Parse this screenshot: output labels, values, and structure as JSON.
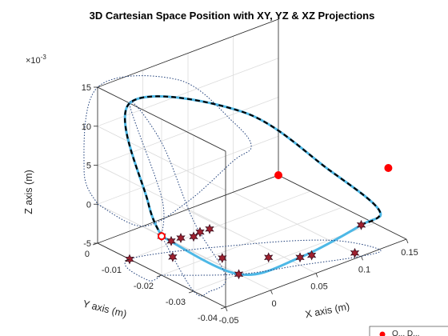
{
  "chart_data": {
    "type": "line",
    "title": "3D Cartesian Space Position with XY, YZ & XZ Projections",
    "xlabel": "X axis (m)",
    "ylabel": "Y axis (m)",
    "zlabel": "Z axis (m)",
    "z_multiplier": "×10",
    "z_exponent": "-3",
    "xlim": [
      -0.05,
      0.15
    ],
    "ylim": [
      -0.04,
      0
    ],
    "zlim": [
      -5,
      15
    ],
    "x_ticks": [
      -0.05,
      0,
      0.05,
      0.1,
      0.15
    ],
    "x_tick_labels": [
      "-0.05",
      "0",
      "0.05",
      "0.1",
      "0.15"
    ],
    "y_ticks": [
      -0.04,
      -0.03,
      -0.02,
      -0.01,
      0
    ],
    "y_tick_labels": [
      "-0.04",
      "-0.03",
      "-0.02",
      "-0.01",
      "0"
    ],
    "z_ticks": [
      -5,
      0,
      5,
      10,
      15
    ],
    "z_tick_labels": [
      "-5",
      "0",
      "5",
      "10",
      "15"
    ],
    "grid": true,
    "legend_position": "bottom-right",
    "legend_text": "Q... D...",
    "colors": {
      "trajectory": "#4db8e6",
      "reference": "#000000",
      "projection": "#1f3f7a",
      "waypoint_fill": "#a0202e",
      "waypoint_edge": "#3c1020",
      "point": "#ff0000"
    },
    "series": [
      {
        "role": "actual-trajectory",
        "points": [
          [
            -0.05,
            -0.02,
            0
          ],
          [
            0,
            -0.03,
            -5
          ],
          [
            0.05,
            -0.035,
            -4
          ],
          [
            0.1,
            -0.04,
            -1
          ],
          [
            0.12,
            -0.04,
            0
          ],
          [
            0.1,
            -0.03,
            4
          ],
          [
            0.04,
            -0.02,
            12
          ],
          [
            -0.05,
            -0.01,
            15
          ],
          [
            -0.065,
            -0.02,
            5
          ],
          [
            -0.05,
            -0.02,
            0
          ]
        ]
      },
      {
        "role": "reference-trajectory",
        "points": [
          [
            0.1,
            -0.04,
            -1
          ],
          [
            0.12,
            -0.04,
            0
          ],
          [
            0.1,
            -0.03,
            4
          ],
          [
            0.04,
            -0.02,
            12
          ],
          [
            -0.05,
            -0.01,
            15
          ],
          [
            -0.065,
            -0.02,
            5
          ],
          [
            -0.05,
            -0.02,
            0
          ]
        ]
      },
      {
        "role": "projection-xy",
        "points": [
          [
            -0.05,
            -0.02,
            -5
          ],
          [
            0,
            -0.03,
            -5
          ],
          [
            0.05,
            -0.035,
            -5
          ],
          [
            0.1,
            -0.04,
            -5
          ],
          [
            0.12,
            -0.04,
            -5
          ],
          [
            0.1,
            -0.03,
            -5
          ],
          [
            0.04,
            -0.02,
            -5
          ],
          [
            -0.05,
            -0.01,
            -5
          ],
          [
            -0.065,
            -0.02,
            -5
          ],
          [
            -0.05,
            -0.02,
            -5
          ]
        ]
      },
      {
        "role": "projection-yz",
        "points": [
          [
            -0.05,
            -0.02,
            0
          ],
          [
            -0.05,
            -0.03,
            -5
          ],
          [
            -0.05,
            -0.035,
            -4
          ],
          [
            -0.05,
            -0.04,
            -1
          ],
          [
            -0.05,
            -0.03,
            4
          ],
          [
            -0.05,
            -0.02,
            12
          ],
          [
            -0.05,
            -0.01,
            15
          ],
          [
            -0.05,
            -0.02,
            5
          ],
          [
            -0.05,
            -0.02,
            0
          ]
        ]
      },
      {
        "role": "projection-xz",
        "points": [
          [
            -0.05,
            0,
            0
          ],
          [
            0,
            0,
            -5
          ],
          [
            0.05,
            0,
            -4
          ],
          [
            0.1,
            0,
            -1
          ],
          [
            0.12,
            0,
            0
          ],
          [
            0.1,
            0,
            4
          ],
          [
            0.04,
            0,
            12
          ],
          [
            -0.05,
            0,
            15
          ],
          [
            -0.065,
            0,
            5
          ],
          [
            -0.05,
            0,
            0
          ]
        ]
      }
    ],
    "waypoints": [
      [
        -0.05,
        -0.02,
        0
      ],
      [
        0,
        -0.03,
        -5
      ],
      [
        0.05,
        -0.035,
        -4
      ],
      [
        0.1,
        -0.04,
        -1
      ],
      [
        -0.05,
        -0.023,
        0
      ],
      [
        -0.05,
        -0.026,
        1
      ],
      [
        -0.05,
        -0.03,
        2
      ],
      [
        -0.05,
        -0.032,
        3
      ],
      [
        -0.05,
        -0.035,
        4
      ],
      [
        -0.05,
        -0.01,
        -5
      ],
      [
        -0.02,
        -0.015,
        -5
      ],
      [
        0.01,
        -0.022,
        -5
      ],
      [
        0.04,
        -0.028,
        -5
      ],
      [
        0.07,
        -0.033,
        -5
      ],
      [
        0.1,
        -0.038,
        -5
      ]
    ],
    "points": [
      [
        -0.05,
        -0.02,
        0
      ],
      [
        0.15,
        0,
        -5
      ],
      [
        0.13,
        -0.04,
        5
      ]
    ]
  },
  "legend": {
    "label": "Q... D..."
  }
}
